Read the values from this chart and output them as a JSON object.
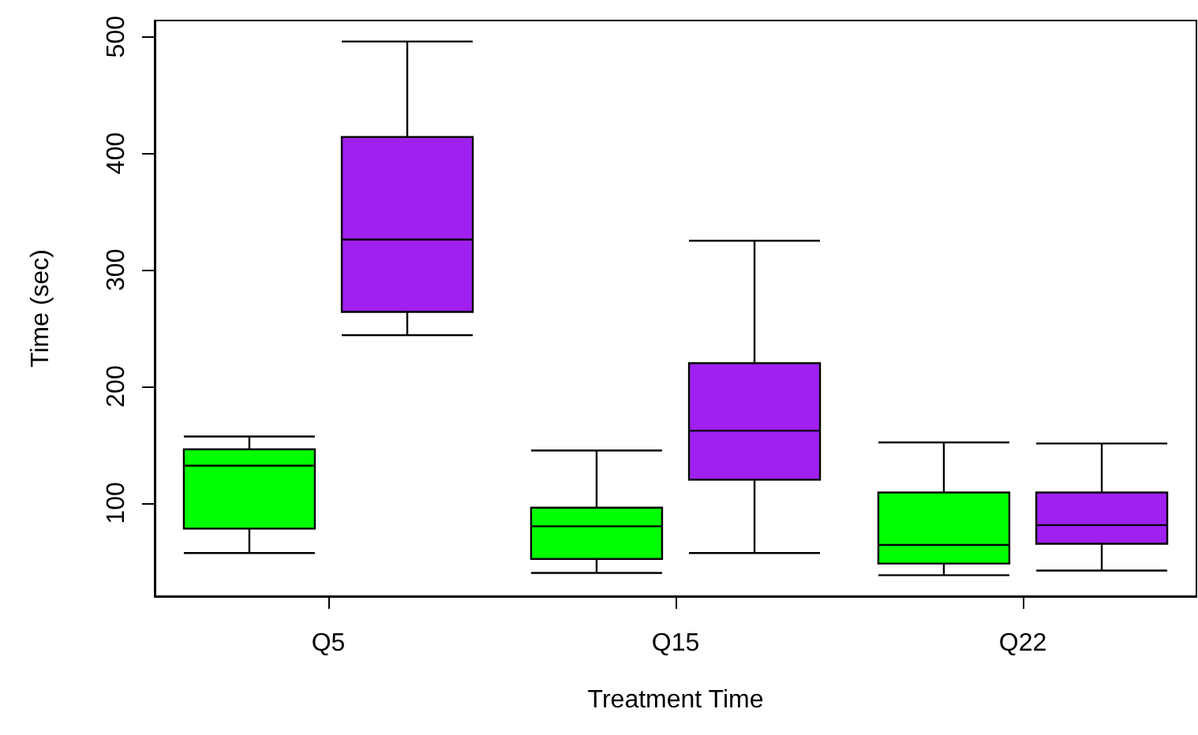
{
  "chart_data": {
    "type": "box",
    "xlabel": "Treatment Time",
    "ylabel": "Time (sec)",
    "categories": [
      "Q5",
      "Q15",
      "Q22"
    ],
    "series": [
      {
        "color": "#00ff00",
        "boxes": [
          {
            "low": 57,
            "q1": 78,
            "median": 132,
            "q3": 146,
            "high": 157
          },
          {
            "low": 40,
            "q1": 52,
            "median": 80,
            "q3": 96,
            "high": 145
          },
          {
            "low": 38,
            "q1": 48,
            "median": 64,
            "q3": 109,
            "high": 152
          }
        ]
      },
      {
        "color": "#a020f0",
        "boxes": [
          {
            "low": 244,
            "q1": 264,
            "median": 326,
            "q3": 414,
            "high": 496
          },
          {
            "low": 57,
            "q1": 120,
            "median": 162,
            "q3": 220,
            "high": 325
          },
          {
            "low": 42,
            "q1": 65,
            "median": 81,
            "q3": 109,
            "high": 151
          }
        ]
      }
    ],
    "ylim": [
      20,
      514
    ],
    "yticks": [
      100,
      200,
      300,
      400,
      500
    ],
    "grid": false
  }
}
